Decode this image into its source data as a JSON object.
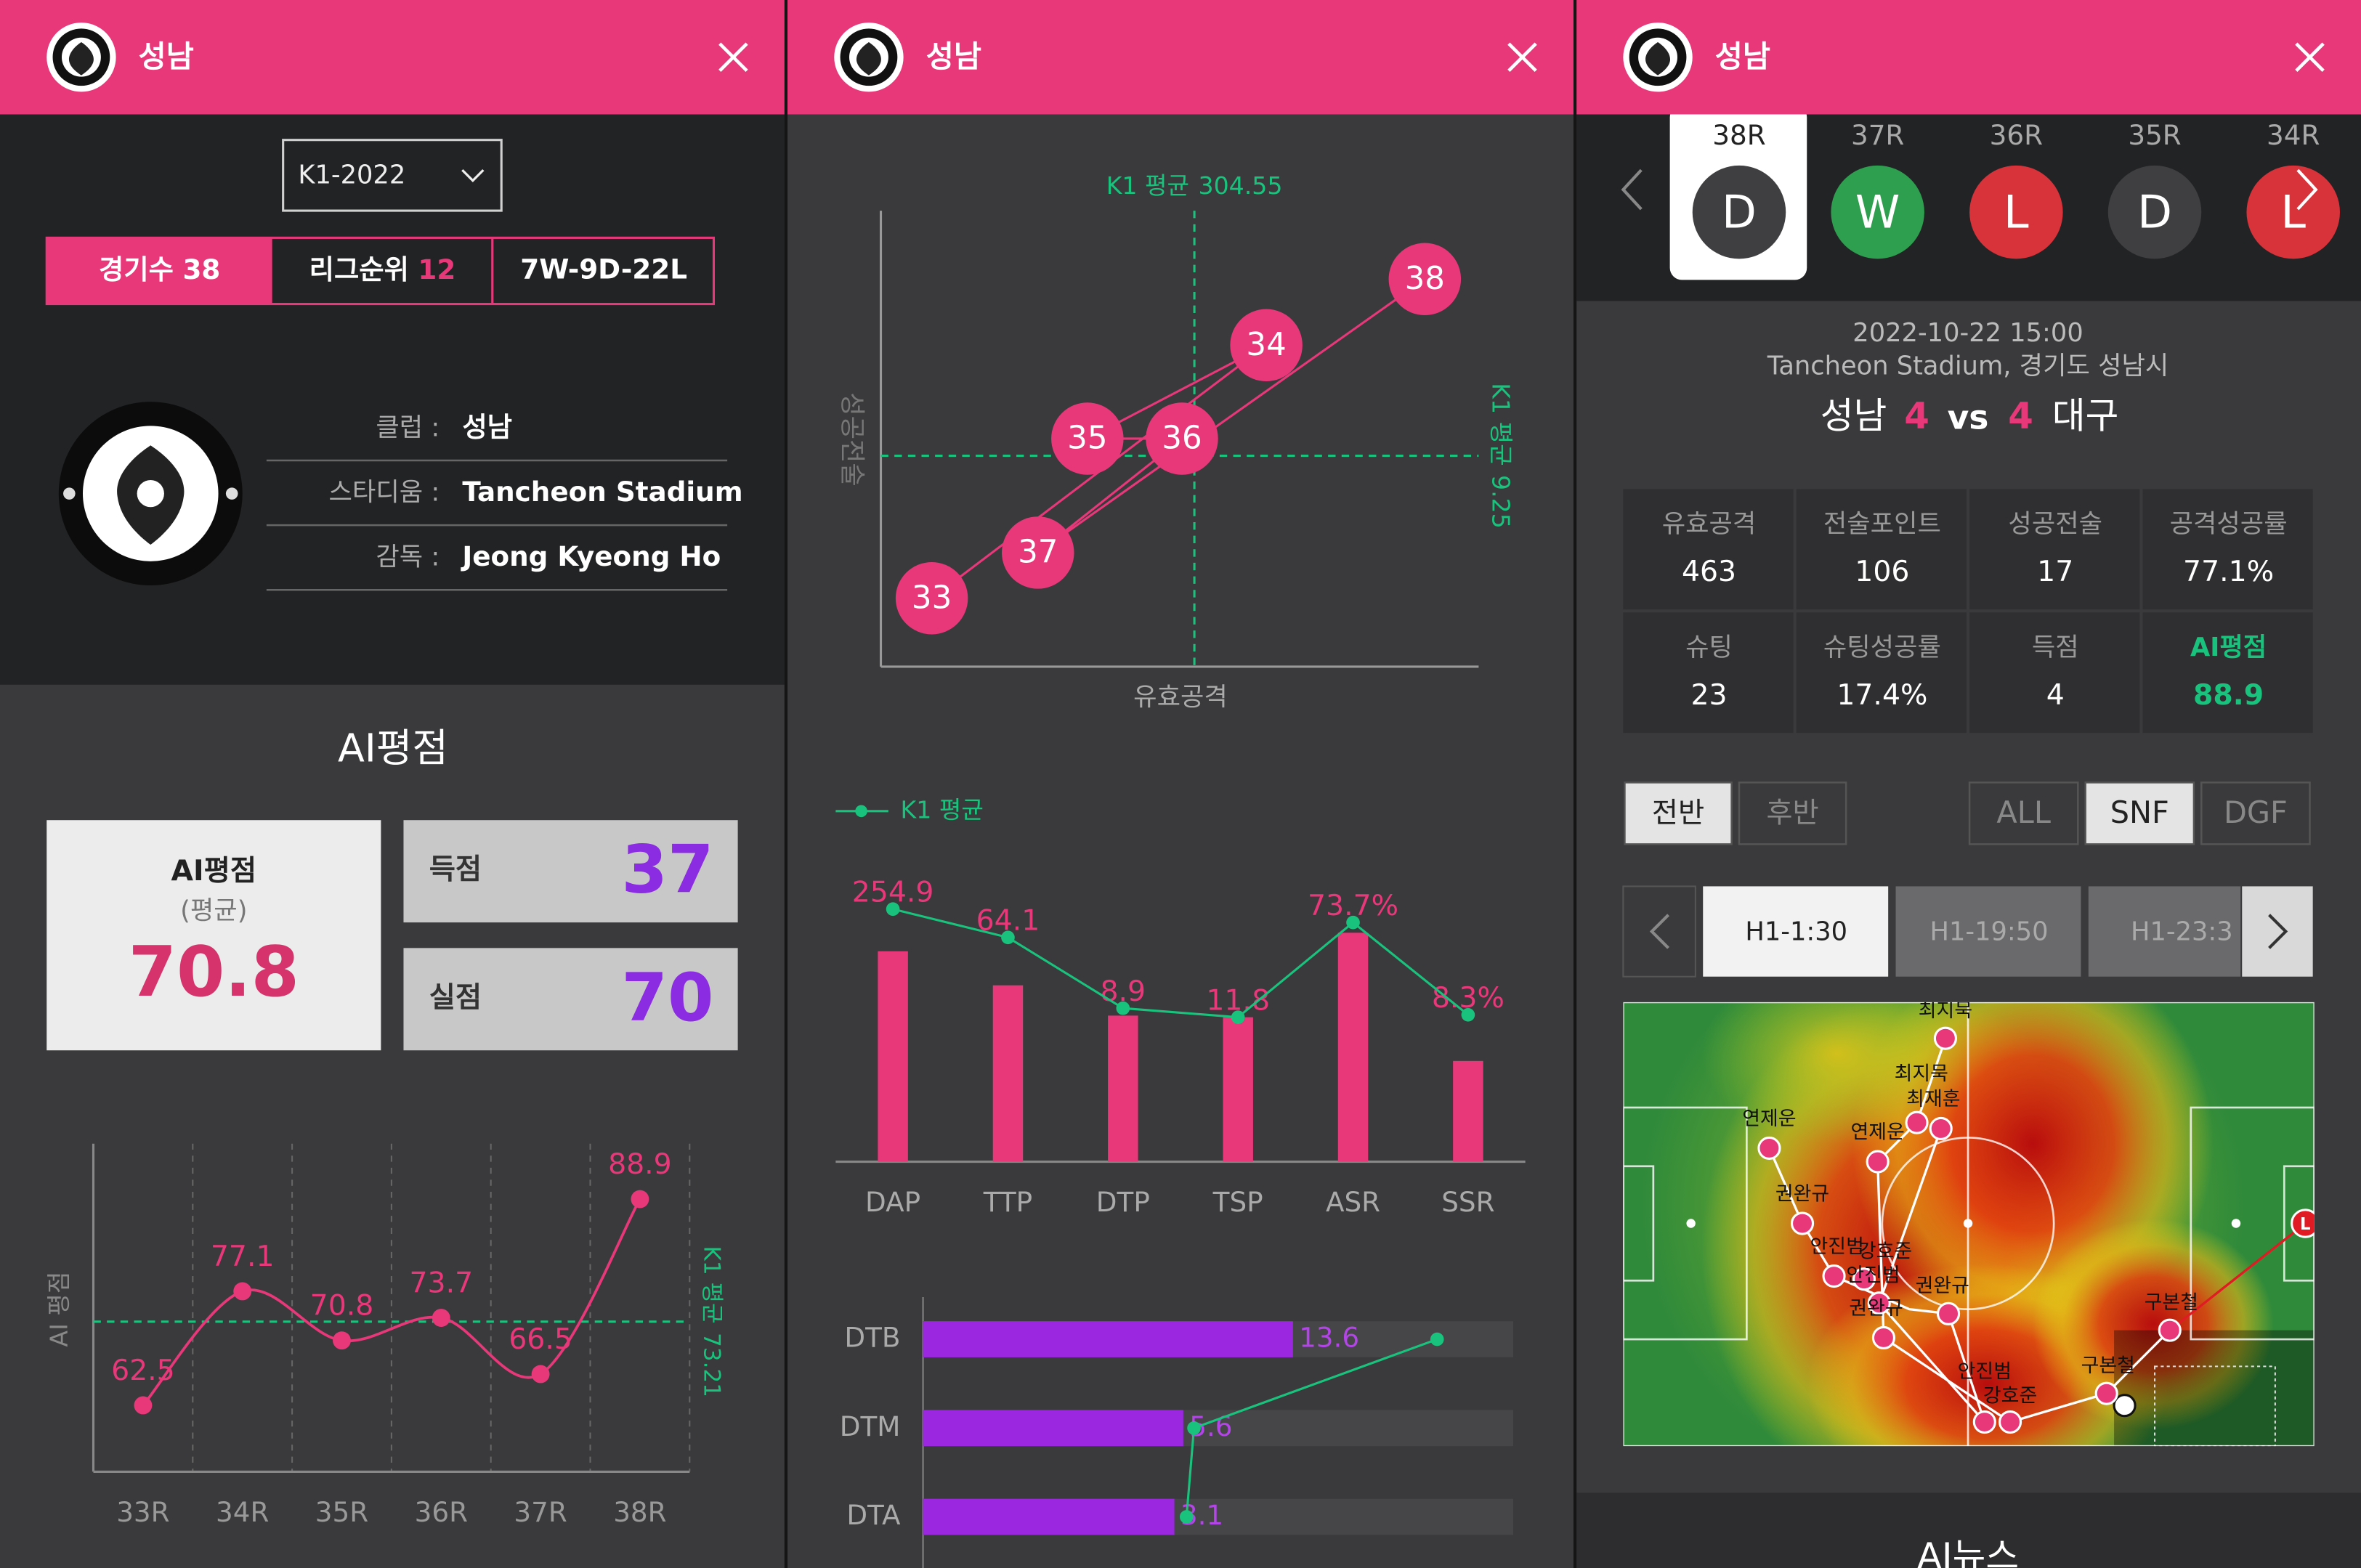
{
  "header": {
    "title": "성남"
  },
  "club_panel": {
    "season": "K1-2022",
    "summary": {
      "games_label": "경기수",
      "games": 38,
      "rank_label": "리그순위",
      "rank": 12,
      "record": "7W-9D-22L"
    },
    "info": [
      {
        "label": "클럽 :",
        "value": "성남"
      },
      {
        "label": "스타디움 :",
        "value": "Tancheon Stadium"
      },
      {
        "label": "감독 :",
        "value": "Jeong Kyeong Ho"
      }
    ],
    "ai_title": "AI평점",
    "ai_card": {
      "label": "AI평점",
      "sublabel": "(평균)",
      "value": 70.8
    },
    "goals": {
      "label": "득점",
      "value": 37
    },
    "conceded": {
      "label": "실점",
      "value": 70
    },
    "chart": {
      "type": "line",
      "y_label": "AI 평점",
      "categories": [
        "33R",
        "34R",
        "35R",
        "36R",
        "37R",
        "38R"
      ],
      "values": [
        62.5,
        77.1,
        70.8,
        73.7,
        66.5,
        88.9
      ],
      "color": "#e8387a",
      "ylim": [
        54,
        96
      ],
      "grid": true,
      "reference": {
        "label": "K1 평균",
        "value": 73.21,
        "color": "#19c37d"
      }
    }
  },
  "analysis_panel": {
    "scatter": {
      "type": "scatter",
      "x_label": "유효공격",
      "y_label": "성공전술",
      "labels": [
        "33",
        "34",
        "35",
        "36",
        "37",
        "38"
      ],
      "x": [
        124,
        354,
        231,
        296,
        197,
        463
      ],
      "y": [
        3,
        14.1,
        10,
        10,
        5,
        17
      ],
      "xlim": [
        89,
        500
      ],
      "ylim": [
        0,
        20
      ],
      "color": "#e8387a",
      "reference_color": "#19c37d",
      "x_reference": {
        "label": "K1 평균",
        "value": 304.55
      },
      "y_reference": {
        "label": "K1 평균",
        "value": 9.25
      }
    },
    "bar_chart": {
      "type": "bar",
      "categories": [
        "DAP",
        "TTP",
        "DTP",
        "TSP",
        "ASR",
        "SSR"
      ],
      "values": [
        254.9,
        64.1,
        8.9,
        11.8,
        73.7,
        8.3
      ],
      "value_labels": [
        "254.9",
        "64.1",
        "8.9",
        "11.8",
        "73.7%",
        "8.3%"
      ],
      "color": "#e8387a",
      "category_ylims": [
        [
          0,
          350
        ],
        [
          0,
          105
        ],
        [
          0,
          17.6
        ],
        [
          0,
          23.6
        ],
        [
          0,
          93
        ],
        [
          0,
          23.8
        ]
      ],
      "reference_series": {
        "name": "K1 평균",
        "color": "#19c37d",
        "values": [
          306,
          81.5,
          9.35,
          11.8,
          77,
          12.1
        ]
      }
    },
    "hbar_chart": {
      "type": "bar",
      "orientation": "horizontal",
      "categories": [
        "DTB",
        "DTM",
        "DTA"
      ],
      "values": [
        13.6,
        5.6,
        3.1
      ],
      "color": "#9b27e0",
      "category_xlims": [
        [
          0,
          21.7
        ],
        [
          0,
          12.7
        ],
        [
          0,
          7.28
        ]
      ],
      "reference_series": {
        "color": "#19c37d",
        "values": [
          18.9,
          5.83,
          3.25
        ]
      }
    }
  },
  "match_panel": {
    "rounds": [
      {
        "round": "38R",
        "result": "D"
      },
      {
        "round": "37R",
        "result": "W"
      },
      {
        "round": "36R",
        "result": "L"
      },
      {
        "round": "35R",
        "result": "D"
      },
      {
        "round": "34R",
        "result": "L"
      }
    ],
    "result_colors": {
      "W": "#2e9e4f",
      "D": "#3f3f41",
      "L": "#d8323a"
    },
    "match": {
      "datetime": "2022-10-22 15:00",
      "venue": "Tancheon Stadium, 경기도 성남시",
      "home": "성남",
      "home_score": 4,
      "vs": "vs",
      "away_score": 4,
      "away": "대구"
    },
    "stats": [
      {
        "label": "유효공격",
        "value": "463"
      },
      {
        "label": "전술포인트",
        "value": "106"
      },
      {
        "label": "성공전술",
        "value": "17"
      },
      {
        "label": "공격성공률",
        "value": "77.1%"
      },
      {
        "label": "슈팅",
        "value": "23"
      },
      {
        "label": "슈팅성공률",
        "value": "17.4%"
      },
      {
        "label": "득점",
        "value": "4"
      },
      {
        "label": "AI평점",
        "value": "88.9"
      }
    ],
    "half_tabs": [
      "전반",
      "후반"
    ],
    "filters": [
      "ALL",
      "SNF",
      "DGF"
    ],
    "timeline": [
      "H1-1:30",
      "H1-19:50",
      "H1-23:3"
    ],
    "heatmap": {
      "players": [
        "최지묵",
        "최지묵",
        "최재훈",
        "연제운",
        "연제운",
        "권완규",
        "안진범",
        "강호준",
        "안진범",
        "권완규",
        "권완규",
        "구본철",
        "구본철",
        "안진범",
        "강호준"
      ],
      "marker": "L"
    },
    "news_title": "AI뉴스"
  }
}
